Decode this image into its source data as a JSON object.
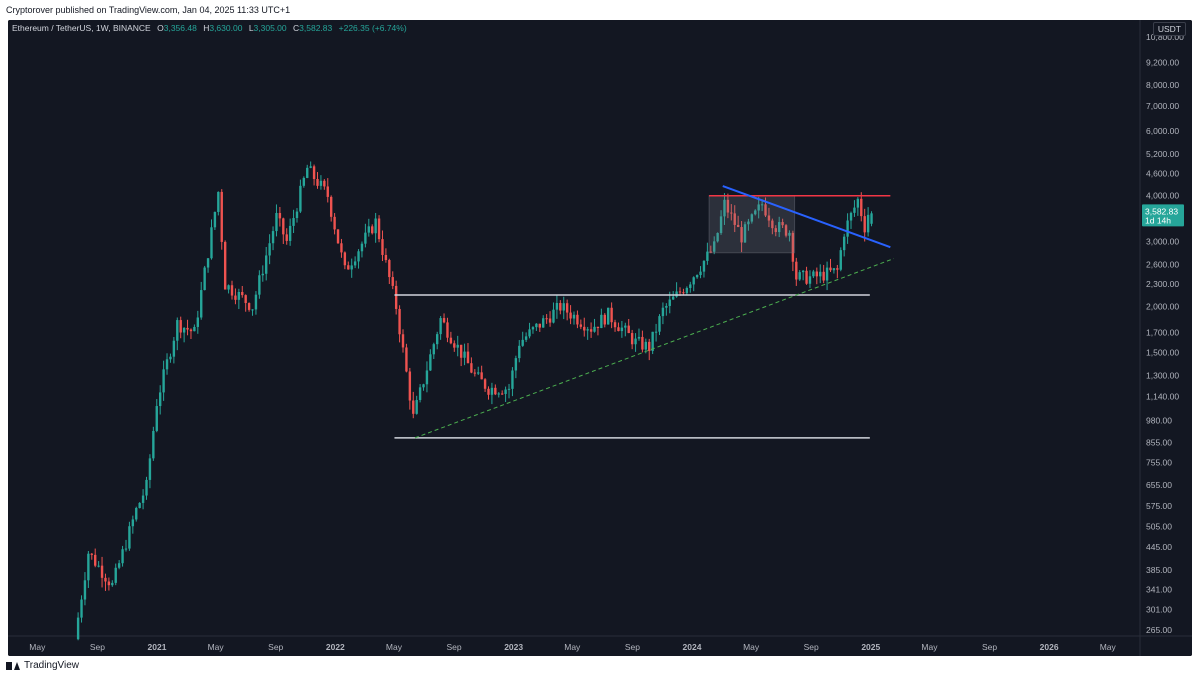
{
  "header": {
    "published": "Cryptorover published on TradingView.com, Jan 04, 2025 11:33 UTC+1"
  },
  "legend": {
    "symbol": "Ethereum / TetherUS, 1W, BINANCE",
    "o_label": "O",
    "o_value": "3,356.48",
    "h_label": "H",
    "h_value": "3,630.00",
    "l_label": "L",
    "l_value": "3,305.00",
    "c_label": "C",
    "c_value": "3,582.83",
    "change": "+226.35 (+6.74%)"
  },
  "currency": "USDT",
  "price_tag": {
    "value": "3,582.83",
    "countdown": "1d 14h"
  },
  "footer": {
    "brand": "TradingView"
  },
  "colors": {
    "background": "#131722",
    "up": "#26a69a",
    "down": "#ef5350",
    "resistance": "#f23645",
    "trendline": "#2962ff",
    "support": "#d1d4dc",
    "dashed": "#4caf50"
  },
  "chart_data": {
    "type": "candlestick",
    "scale": "log",
    "ylim": [
      255,
      12000
    ],
    "y_ticks": [
      "10,800.00",
      "9,200.00",
      "8,000.00",
      "7,000.00",
      "6,000.00",
      "5,200.00",
      "4,600.00",
      "4,000.00",
      "3,000.00",
      "2,600.00",
      "2,300.00",
      "2,000.00",
      "1,700.00",
      "1,500.00",
      "1,300.00",
      "1,140.00",
      "980.00",
      "855.00",
      "755.00",
      "655.00",
      "575.00",
      "505.00",
      "445.00",
      "385.00",
      "341.00",
      "301.00",
      "265.00"
    ],
    "x_ticks": [
      {
        "label": "May",
        "date": "2020-05-01"
      },
      {
        "label": "Sep",
        "date": "2020-09-01"
      },
      {
        "label": "2021",
        "date": "2021-01-01"
      },
      {
        "label": "May",
        "date": "2021-05-01"
      },
      {
        "label": "Sep",
        "date": "2021-09-01"
      },
      {
        "label": "2022",
        "date": "2022-01-01"
      },
      {
        "label": "May",
        "date": "2022-05-01"
      },
      {
        "label": "Sep",
        "date": "2022-09-01"
      },
      {
        "label": "2023",
        "date": "2023-01-01"
      },
      {
        "label": "May",
        "date": "2023-05-01"
      },
      {
        "label": "Sep",
        "date": "2023-09-01"
      },
      {
        "label": "2024",
        "date": "2024-01-01"
      },
      {
        "label": "May",
        "date": "2024-05-01"
      },
      {
        "label": "Sep",
        "date": "2024-09-01"
      },
      {
        "label": "2025",
        "date": "2025-01-01"
      },
      {
        "label": "May",
        "date": "2025-05-01"
      },
      {
        "label": "Sep",
        "date": "2025-09-01"
      },
      {
        "label": "2026",
        "date": "2026-01-01"
      },
      {
        "label": "May",
        "date": "2026-05-01"
      }
    ],
    "anchors": [
      {
        "date": "2020-07-20",
        "price": 250
      },
      {
        "date": "2020-08-17",
        "price": 430
      },
      {
        "date": "2020-10-05",
        "price": 350
      },
      {
        "date": "2020-11-23",
        "price": 560
      },
      {
        "date": "2020-12-14",
        "price": 650
      },
      {
        "date": "2021-01-04",
        "price": 1100
      },
      {
        "date": "2021-02-15",
        "price": 1800
      },
      {
        "date": "2021-03-22",
        "price": 1700
      },
      {
        "date": "2021-05-10",
        "price": 4100
      },
      {
        "date": "2021-05-24",
        "price": 2300
      },
      {
        "date": "2021-07-19",
        "price": 2000
      },
      {
        "date": "2021-09-06",
        "price": 3500
      },
      {
        "date": "2021-09-27",
        "price": 3000
      },
      {
        "date": "2021-11-08",
        "price": 4750
      },
      {
        "date": "2021-12-20",
        "price": 4000
      },
      {
        "date": "2022-01-24",
        "price": 2500
      },
      {
        "date": "2022-03-28",
        "price": 3400
      },
      {
        "date": "2022-05-09",
        "price": 2000
      },
      {
        "date": "2022-06-13",
        "price": 1000
      },
      {
        "date": "2022-08-08",
        "price": 1850
      },
      {
        "date": "2022-10-17",
        "price": 1300
      },
      {
        "date": "2022-11-14",
        "price": 1200
      },
      {
        "date": "2022-12-26",
        "price": 1200
      },
      {
        "date": "2023-01-16",
        "price": 1600
      },
      {
        "date": "2023-04-10",
        "price": 2000
      },
      {
        "date": "2023-06-12",
        "price": 1750
      },
      {
        "date": "2023-07-17",
        "price": 1900
      },
      {
        "date": "2023-09-11",
        "price": 1600
      },
      {
        "date": "2023-10-09",
        "price": 1550
      },
      {
        "date": "2023-11-06",
        "price": 1950
      },
      {
        "date": "2023-12-25",
        "price": 2300
      },
      {
        "date": "2024-02-19",
        "price": 2900
      },
      {
        "date": "2024-03-11",
        "price": 3800
      },
      {
        "date": "2024-04-15",
        "price": 3100
      },
      {
        "date": "2024-05-27",
        "price": 3800
      },
      {
        "date": "2024-06-24",
        "price": 3300
      },
      {
        "date": "2024-07-22",
        "price": 3200
      },
      {
        "date": "2024-08-05",
        "price": 2400
      },
      {
        "date": "2024-09-09",
        "price": 2400
      },
      {
        "date": "2024-10-28",
        "price": 2500
      },
      {
        "date": "2024-11-11",
        "price": 3200
      },
      {
        "date": "2024-12-09",
        "price": 3900
      },
      {
        "date": "2024-12-23",
        "price": 3300
      },
      {
        "date": "2024-12-30",
        "price": 3580
      }
    ],
    "last_candle": {
      "date": "2024-12-30",
      "open": 3356.48,
      "high": 3630.0,
      "low": 3305.0,
      "close": 3582.83
    },
    "annotations": [
      {
        "kind": "hline",
        "name": "resistance",
        "price": 4000,
        "from": "2024-02-05",
        "to": "2025-02-10"
      },
      {
        "kind": "hline",
        "name": "support-upper",
        "price": 2150,
        "from": "2022-05-02",
        "to": "2024-12-30"
      },
      {
        "kind": "hline",
        "name": "support-lower",
        "price": 880,
        "from": "2022-05-02",
        "to": "2024-12-30"
      },
      {
        "kind": "trend",
        "name": "blue-trendline",
        "from": {
          "date": "2024-03-04",
          "price": 4250
        },
        "to": {
          "date": "2025-02-10",
          "price": 2900
        }
      },
      {
        "kind": "trend-dashed",
        "name": "rising-support",
        "from": {
          "date": "2022-06-13",
          "price": 880
        },
        "to": {
          "date": "2025-02-17",
          "price": 2700
        }
      },
      {
        "kind": "box",
        "name": "range-box",
        "from": {
          "date": "2024-02-05",
          "price": 4000
        },
        "to": {
          "date": "2024-07-29",
          "price": 2800
        }
      }
    ]
  }
}
